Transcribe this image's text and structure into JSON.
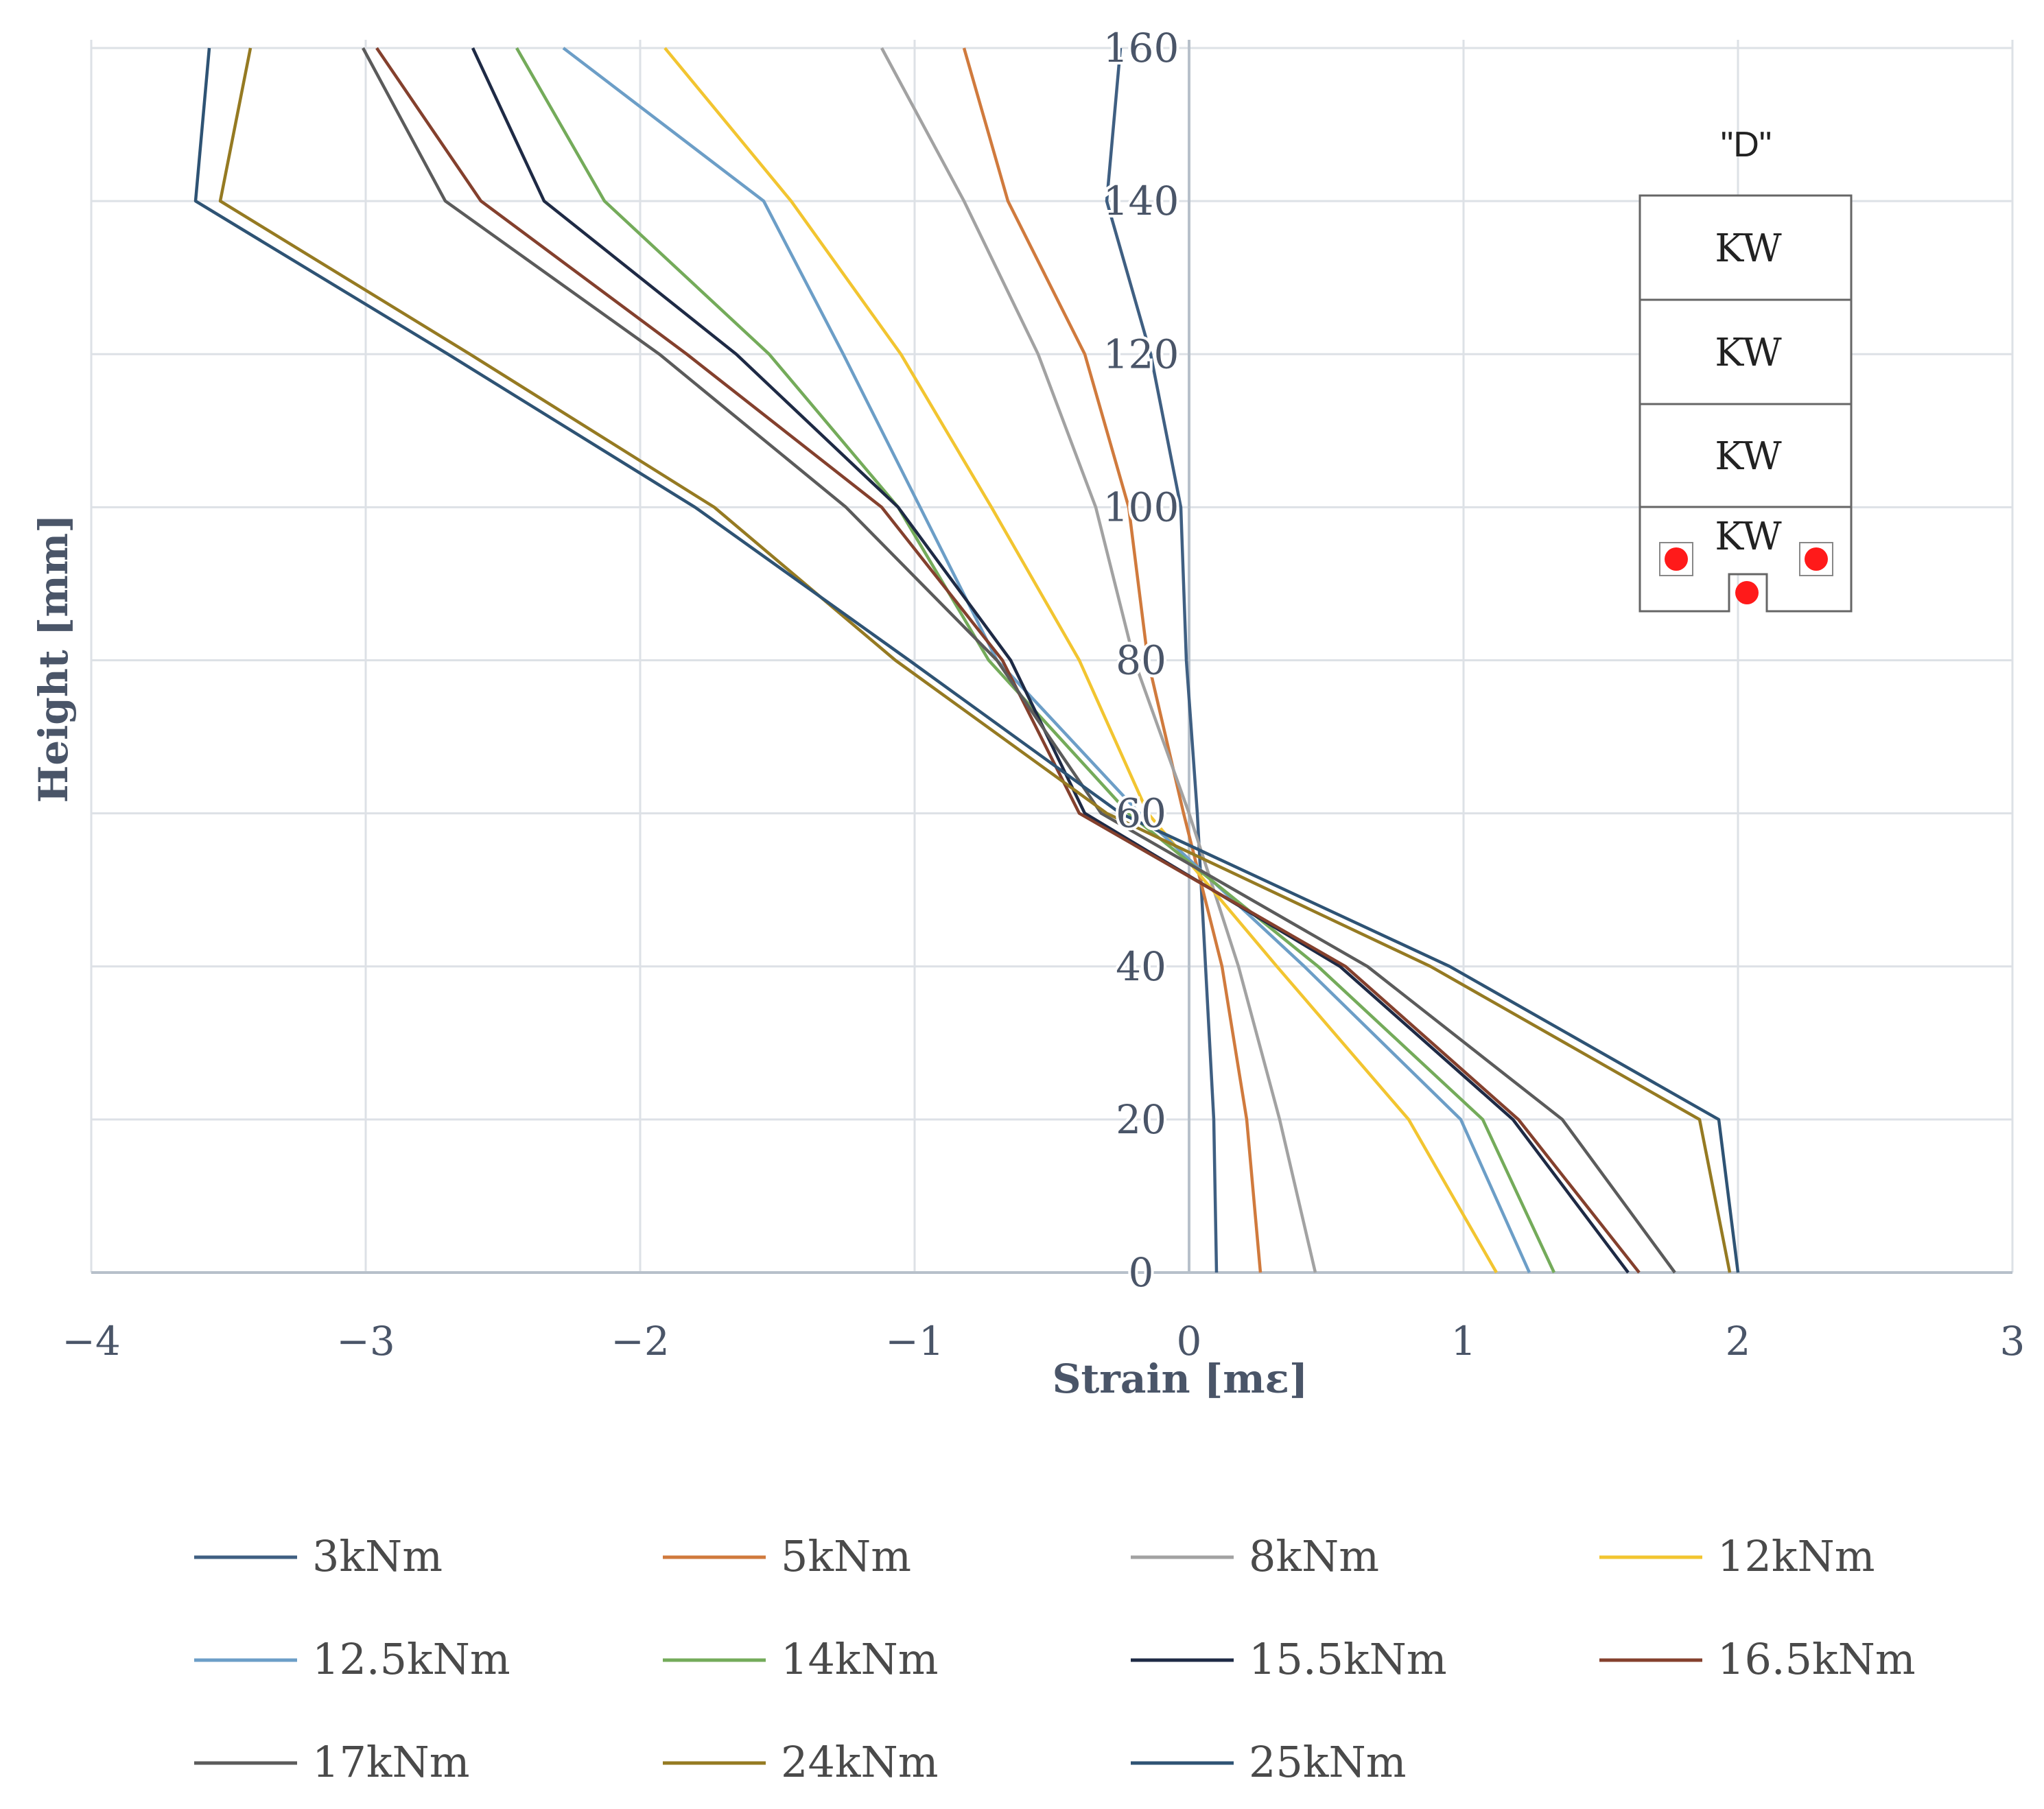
{
  "chart_data": {
    "type": "line",
    "title": "",
    "xlabel": "Strain [mε]",
    "ylabel": "Height [mm]",
    "xlim": [
      -4,
      3
    ],
    "ylim": [
      0,
      160
    ],
    "x_ticks": [
      -4,
      -3,
      -2,
      -1,
      0,
      1,
      2,
      3
    ],
    "x_tick_labels": [
      "−4",
      "−3",
      "−2",
      "−1",
      "0",
      "1",
      "2",
      "3"
    ],
    "y_ticks": [
      0,
      20,
      40,
      60,
      80,
      100,
      120,
      140,
      160
    ],
    "y_tick_labels": [
      "0",
      "20",
      "40",
      "60",
      "80",
      "100",
      "120",
      "140",
      "160"
    ],
    "grid": true,
    "legend_position": "bottom",
    "heights": [
      0,
      20,
      40,
      60,
      80,
      100,
      120,
      140,
      160
    ],
    "series": [
      {
        "name": "3kNm",
        "color": "#3f5f82",
        "strain": [
          0.1,
          0.09,
          0.06,
          0.03,
          -0.01,
          -0.03,
          -0.14,
          -0.3,
          -0.25
        ]
      },
      {
        "name": "5kNm",
        "color": "#d07a3d",
        "strain": [
          0.26,
          0.21,
          0.12,
          -0.02,
          -0.15,
          -0.22,
          -0.38,
          -0.66,
          -0.82
        ]
      },
      {
        "name": "8kNm",
        "color": "#a2a2a2",
        "strain": [
          0.46,
          0.33,
          0.18,
          0.0,
          -0.2,
          -0.34,
          -0.55,
          -0.82,
          -1.12
        ]
      },
      {
        "name": "12kNm",
        "color": "#f2c530",
        "strain": [
          1.12,
          0.8,
          0.32,
          -0.15,
          -0.4,
          -0.72,
          -1.05,
          -1.45,
          -1.91
        ]
      },
      {
        "name": "12.5kNm",
        "color": "#6c9ec7",
        "strain": [
          1.24,
          0.99,
          0.42,
          -0.18,
          -0.7,
          -0.98,
          -1.26,
          -1.55,
          -2.28
        ]
      },
      {
        "name": "14kNm",
        "color": "#74ab5a",
        "strain": [
          1.33,
          1.07,
          0.47,
          -0.22,
          -0.73,
          -1.06,
          -1.53,
          -2.13,
          -2.45
        ]
      },
      {
        "name": "15.5kNm",
        "color": "#1e2a45",
        "strain": [
          1.6,
          1.18,
          0.55,
          -0.38,
          -0.65,
          -1.06,
          -1.65,
          -2.35,
          -2.61
        ]
      },
      {
        "name": "16.5kNm",
        "color": "#84402d",
        "strain": [
          1.64,
          1.2,
          0.57,
          -0.4,
          -0.68,
          -1.12,
          -1.83,
          -2.58,
          -2.96
        ]
      },
      {
        "name": "17kNm",
        "color": "#5b5b5b",
        "strain": [
          1.77,
          1.36,
          0.65,
          -0.32,
          -0.7,
          -1.25,
          -1.93,
          -2.71,
          -3.01
        ]
      },
      {
        "name": "24kNm",
        "color": "#957a22",
        "strain": [
          1.97,
          1.86,
          0.88,
          -0.3,
          -1.07,
          -1.73,
          -2.62,
          -3.53,
          -3.42
        ]
      },
      {
        "name": "25kNm",
        "color": "#2e5374",
        "strain": [
          2.0,
          1.93,
          0.95,
          -0.25,
          -1.02,
          -1.8,
          -2.7,
          -3.62,
          -3.57
        ]
      }
    ]
  },
  "inset": {
    "label": "\"D\"",
    "blocks": [
      "KW",
      "KW",
      "KW",
      "KW"
    ],
    "marker_color": "#ff1a1a"
  }
}
